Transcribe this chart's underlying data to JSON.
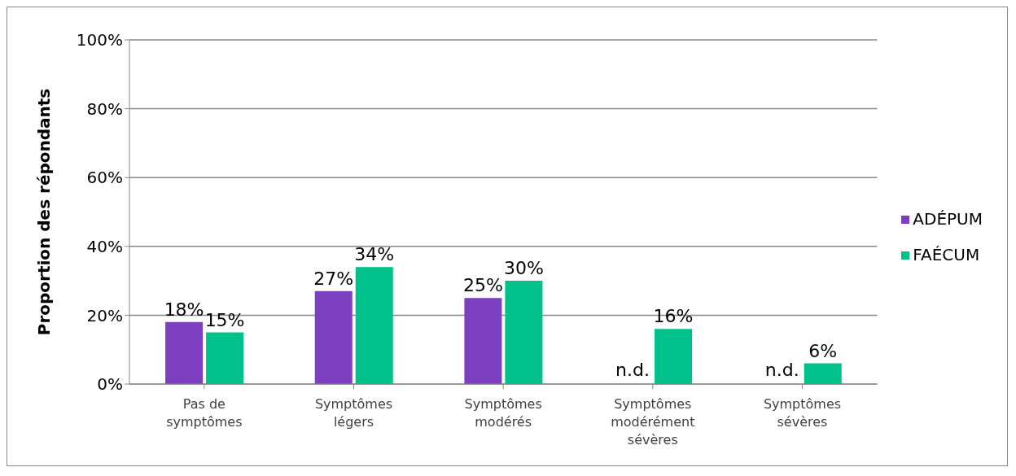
{
  "chart_data": {
    "type": "bar",
    "ylabel": "Proportion des répondants",
    "categories": [
      "Pas de symptômes",
      "Symptômes légers",
      "Symptômes modérés",
      "Symptômes modérément sévères",
      "Symptômes sévères"
    ],
    "series": [
      {
        "name": "ADÉPUM",
        "color": "#7b3fbf",
        "values": [
          18,
          27,
          25,
          null,
          null
        ],
        "value_labels": [
          "18%",
          "27%",
          "25%",
          "n.d.",
          "n.d."
        ]
      },
      {
        "name": "FAÉCUM",
        "color": "#00c08b",
        "values": [
          15,
          34,
          30,
          16,
          6
        ],
        "value_labels": [
          "15%",
          "34%",
          "30%",
          "16%",
          "6%"
        ]
      }
    ],
    "ylim": [
      0,
      100
    ],
    "yticks": [
      {
        "value": 0,
        "label": "0%"
      },
      {
        "value": 20,
        "label": "20%"
      },
      {
        "value": 40,
        "label": "40%"
      },
      {
        "value": 60,
        "label": "60%"
      },
      {
        "value": 80,
        "label": "80%"
      },
      {
        "value": 100,
        "label": "100%"
      }
    ],
    "grid": "y",
    "legend": "right"
  }
}
